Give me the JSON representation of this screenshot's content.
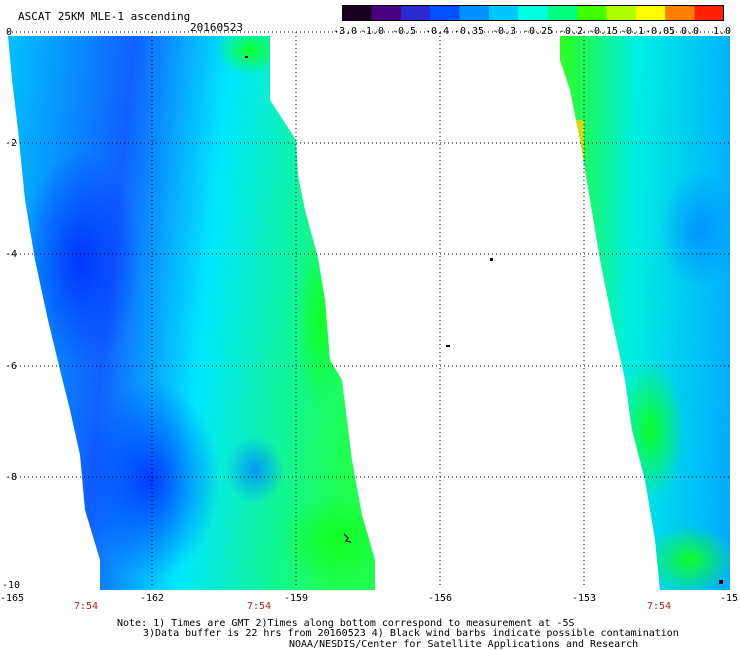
{
  "header": {
    "title": "ASCAT 25KM MLE-1 ascending",
    "date": "20160523"
  },
  "color_scale": {
    "labels": [
      "-3.0",
      "-1.0",
      "-0.5",
      "-0.4",
      "-0.35",
      "-0.3",
      "-0.25",
      "-0.2",
      "-0.15",
      "-0.1",
      "-0.05",
      "0.0",
      "1.0"
    ],
    "colors": [
      "#1a0020",
      "#4b0082",
      "#2a2ad0",
      "#0050ff",
      "#0090ff",
      "#00c8ff",
      "#00ffe0",
      "#00ff80",
      "#40ff00",
      "#b0ff00",
      "#ffff00",
      "#ff8000",
      "#ff2000"
    ]
  },
  "axes": {
    "y_labels": [
      "0",
      "-2",
      "-4",
      "-6",
      "-8",
      "-10"
    ],
    "x_labels": [
      "-165",
      "-162",
      "-159",
      "-156",
      "-153",
      "-15"
    ],
    "time_labels": [
      "7:54",
      "7:54",
      "7:54"
    ]
  },
  "notes": {
    "line1": "Note: 1) Times are GMT 2)Times along bottom correspond to measurement at -5S",
    "line2": "3)Data buffer is 22 hrs from 20160523 4) Black wind barbs indicate possible contamination",
    "line3": "NOAA/NESDIS/Center for Satellite Applications and Research"
  }
}
